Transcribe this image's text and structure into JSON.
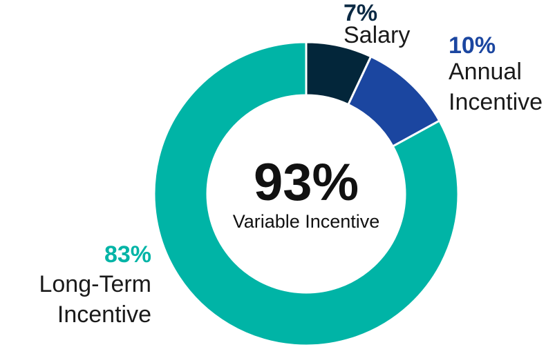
{
  "chart_data": {
    "type": "pie",
    "style": "donut",
    "slices": [
      {
        "label_lines": [
          "Salary"
        ],
        "value": 7,
        "value_label": "7%",
        "color": "#03263a"
      },
      {
        "label_lines": [
          "Annual",
          "Incentive"
        ],
        "value": 10,
        "value_label": "10%",
        "color": "#1b46a0"
      },
      {
        "label_lines": [
          "Long-Term",
          "Incentive"
        ],
        "value": 83,
        "value_label": "83%",
        "color": "#00b4a6"
      }
    ],
    "center": {
      "value": "93%",
      "label": "Variable Incentive"
    }
  },
  "colors": {
    "separator": "#ffffff",
    "text": "#1a1a1a"
  }
}
